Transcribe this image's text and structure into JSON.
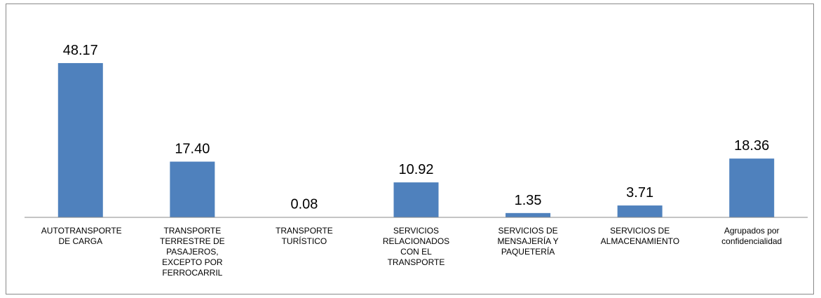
{
  "chart_data": {
    "type": "bar",
    "categories": [
      "AUTOTRANSPORTE DE CARGA",
      "TRANSPORTE TERRESTRE DE PASAJEROS, EXCEPTO POR FERROCARRIL",
      "TRANSPORTE TURÍSTICO",
      "SERVICIOS RELACIONADOS CON EL TRANSPORTE",
      "SERVICIOS DE MENSAJERÍA Y PAQUETERÍA",
      "SERVICIOS DE ALMACENAMIENTO",
      "Agrupados por confidencialidad"
    ],
    "values": [
      48.17,
      17.4,
      0.08,
      10.92,
      1.35,
      3.71,
      18.36
    ],
    "value_labels": [
      "48.17",
      "17.40",
      "0.08",
      "10.92",
      "1.35",
      "3.71",
      "18.36"
    ],
    "color": "#4f81bd",
    "ylim": [
      0,
      50
    ]
  }
}
